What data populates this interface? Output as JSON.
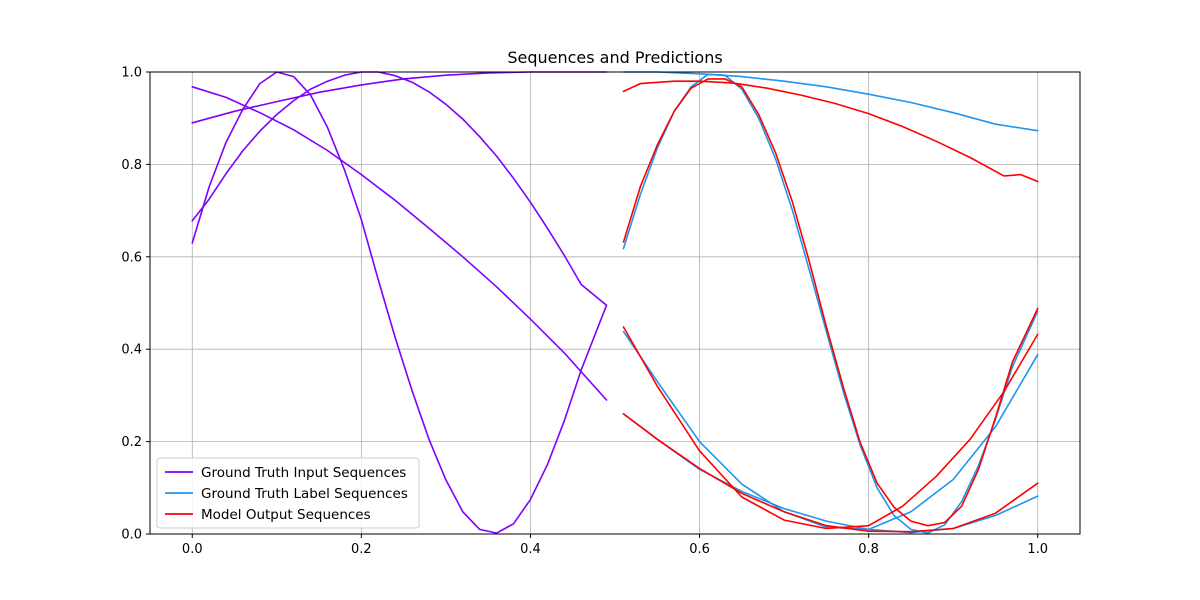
{
  "chart_data": {
    "type": "line",
    "title": "Sequences and Predictions",
    "xlabel": "",
    "ylabel": "",
    "xlim": [
      -0.05,
      1.05
    ],
    "ylim": [
      0,
      1.0
    ],
    "xticks": [
      "0.0",
      "0.2",
      "0.4",
      "0.6",
      "0.8",
      "1.0"
    ],
    "yticks": [
      "0.0",
      "0.2",
      "0.4",
      "0.6",
      "0.8",
      "1.0"
    ],
    "grid": true,
    "legend_position": "lower-left",
    "legend": [
      {
        "label": "Ground Truth Input Sequences",
        "color": "#7f00ff"
      },
      {
        "label": "Ground Truth Label Sequences",
        "color": "#1e96f0"
      },
      {
        "label": "Model Output Sequences",
        "color": "#ff0000"
      }
    ],
    "series": [
      {
        "group": "input",
        "color": "#7f00ff",
        "x": [
          0.0,
          0.04,
          0.08,
          0.12,
          0.16,
          0.2,
          0.24,
          0.28,
          0.32,
          0.36,
          0.4,
          0.44,
          0.49
        ],
        "y": [
          0.968,
          0.945,
          0.912,
          0.875,
          0.83,
          0.778,
          0.722,
          0.662,
          0.6,
          0.535,
          0.465,
          0.392,
          0.29
        ]
      },
      {
        "group": "input",
        "color": "#7f00ff",
        "x": [
          0.0,
          0.05,
          0.1,
          0.15,
          0.2,
          0.25,
          0.3,
          0.35,
          0.4,
          0.45,
          0.49
        ],
        "y": [
          0.89,
          0.915,
          0.936,
          0.956,
          0.972,
          0.985,
          0.993,
          0.998,
          1.0,
          1.0,
          1.0
        ]
      },
      {
        "group": "input",
        "color": "#7f00ff",
        "x": [
          0.0,
          0.02,
          0.04,
          0.06,
          0.08,
          0.1,
          0.12,
          0.14,
          0.16,
          0.18,
          0.2,
          0.22,
          0.24,
          0.26,
          0.28,
          0.3,
          0.32,
          0.34,
          0.36,
          0.38,
          0.4,
          0.42,
          0.44,
          0.46,
          0.49
        ],
        "y": [
          0.678,
          0.725,
          0.78,
          0.83,
          0.872,
          0.908,
          0.938,
          0.963,
          0.98,
          0.993,
          1.0,
          1.0,
          0.992,
          0.978,
          0.957,
          0.93,
          0.898,
          0.86,
          0.818,
          0.77,
          0.718,
          0.662,
          0.603,
          0.54,
          0.495
        ]
      },
      {
        "group": "input",
        "color": "#7f00ff",
        "x": [
          0.0,
          0.02,
          0.04,
          0.06,
          0.08,
          0.1,
          0.12,
          0.14,
          0.16,
          0.18,
          0.2,
          0.22,
          0.24,
          0.26,
          0.28,
          0.3,
          0.32,
          0.34,
          0.36,
          0.38,
          0.4,
          0.42,
          0.44,
          0.46,
          0.49
        ],
        "y": [
          0.63,
          0.752,
          0.848,
          0.92,
          0.975,
          1.0,
          0.99,
          0.95,
          0.88,
          0.788,
          0.68,
          0.55,
          0.425,
          0.31,
          0.205,
          0.117,
          0.048,
          0.01,
          0.002,
          0.022,
          0.075,
          0.15,
          0.245,
          0.355,
          0.495
        ]
      },
      {
        "group": "label",
        "color": "#1e96f0",
        "x": [
          0.51,
          0.55,
          0.6,
          0.65,
          0.7,
          0.75,
          0.8,
          0.85,
          0.9,
          0.95,
          1.0
        ],
        "y": [
          1.0,
          1.0,
          0.996,
          0.99,
          0.98,
          0.968,
          0.952,
          0.934,
          0.912,
          0.887,
          0.873
        ]
      },
      {
        "group": "label",
        "color": "#1e96f0",
        "x": [
          0.51,
          0.53,
          0.55,
          0.57,
          0.59,
          0.61,
          0.63,
          0.65,
          0.67,
          0.69,
          0.71,
          0.73,
          0.75,
          0.77,
          0.79,
          0.81,
          0.83,
          0.85,
          0.87,
          0.89,
          0.91,
          0.93,
          0.95,
          0.97,
          1.0
        ],
        "y": [
          0.618,
          0.735,
          0.835,
          0.915,
          0.968,
          0.995,
          0.993,
          0.963,
          0.9,
          0.812,
          0.7,
          0.57,
          0.438,
          0.308,
          0.192,
          0.1,
          0.04,
          0.01,
          0.002,
          0.02,
          0.07,
          0.148,
          0.248,
          0.362,
          0.482
        ]
      },
      {
        "group": "label",
        "color": "#1e96f0",
        "x": [
          0.51,
          0.55,
          0.6,
          0.65,
          0.7,
          0.75,
          0.8,
          0.85,
          0.9,
          0.95,
          1.0
        ],
        "y": [
          0.438,
          0.33,
          0.2,
          0.108,
          0.048,
          0.015,
          0.01,
          0.048,
          0.118,
          0.232,
          0.388
        ]
      },
      {
        "group": "label",
        "color": "#1e96f0",
        "x": [
          0.51,
          0.55,
          0.6,
          0.65,
          0.7,
          0.75,
          0.8,
          0.85,
          0.9,
          0.95,
          1.0
        ],
        "y": [
          0.26,
          0.205,
          0.14,
          0.092,
          0.055,
          0.028,
          0.01,
          0.003,
          0.012,
          0.04,
          0.082
        ]
      },
      {
        "group": "output",
        "color": "#ff0000",
        "x": [
          0.51,
          0.53,
          0.57,
          0.6,
          0.64,
          0.68,
          0.72,
          0.76,
          0.8,
          0.84,
          0.88,
          0.92,
          0.96,
          0.98,
          1.0
        ],
        "y": [
          0.958,
          0.975,
          0.98,
          0.98,
          0.976,
          0.965,
          0.95,
          0.932,
          0.91,
          0.882,
          0.85,
          0.815,
          0.775,
          0.778,
          0.763
        ]
      },
      {
        "group": "output",
        "color": "#ff0000",
        "x": [
          0.51,
          0.53,
          0.55,
          0.57,
          0.59,
          0.61,
          0.63,
          0.65,
          0.67,
          0.69,
          0.71,
          0.73,
          0.75,
          0.77,
          0.79,
          0.81,
          0.83,
          0.85,
          0.87,
          0.89,
          0.91,
          0.93,
          0.95,
          0.97,
          1.0
        ],
        "y": [
          0.632,
          0.752,
          0.842,
          0.915,
          0.965,
          0.985,
          0.985,
          0.968,
          0.908,
          0.825,
          0.718,
          0.588,
          0.448,
          0.318,
          0.198,
          0.11,
          0.058,
          0.028,
          0.018,
          0.025,
          0.06,
          0.14,
          0.252,
          0.372,
          0.488
        ]
      },
      {
        "group": "output",
        "color": "#ff0000",
        "x": [
          0.51,
          0.55,
          0.6,
          0.65,
          0.7,
          0.75,
          0.8,
          0.84,
          0.88,
          0.92,
          0.96,
          1.0
        ],
        "y": [
          0.448,
          0.32,
          0.18,
          0.08,
          0.03,
          0.012,
          0.018,
          0.06,
          0.125,
          0.205,
          0.308,
          0.432
        ]
      },
      {
        "group": "output",
        "color": "#ff0000",
        "x": [
          0.51,
          0.55,
          0.6,
          0.65,
          0.7,
          0.75,
          0.8,
          0.85,
          0.9,
          0.95,
          1.0
        ],
        "y": [
          0.26,
          0.205,
          0.142,
          0.088,
          0.048,
          0.018,
          0.006,
          0.005,
          0.012,
          0.045,
          0.11
        ]
      }
    ]
  }
}
